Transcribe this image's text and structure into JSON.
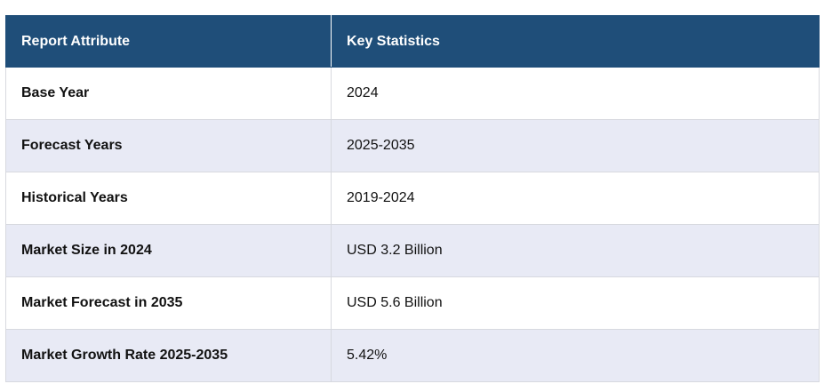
{
  "table": {
    "headers": [
      "Report Attribute",
      "Key Statistics"
    ],
    "rows": [
      {
        "attribute": "Base Year",
        "value": "2024"
      },
      {
        "attribute": "Forecast Years",
        "value": "2025-2035"
      },
      {
        "attribute": "Historical Years",
        "value": "2019-2024"
      },
      {
        "attribute": "Market Size in 2024",
        "value": "USD 3.2 Billion"
      },
      {
        "attribute": "Market Forecast in 2035",
        "value": "USD 5.6 Billion"
      },
      {
        "attribute": "Market Growth Rate 2025-2035",
        "value": "5.42%"
      }
    ]
  },
  "colors": {
    "header_bg": "#1f4e79",
    "header_text": "#ffffff",
    "row_alt_bg": "#e8eaf5",
    "border": "#d7d9df"
  }
}
